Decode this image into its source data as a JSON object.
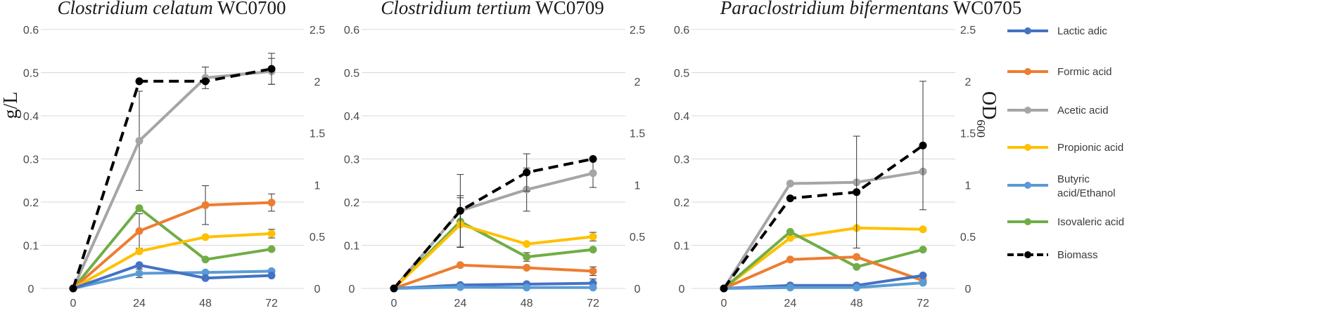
{
  "chart_data": {
    "type": "line",
    "left_axis": {
      "label": "g/L",
      "ylim": [
        0,
        0.6
      ],
      "ticks": [
        "0",
        "0.1",
        "0.2",
        "0.3",
        "0.4",
        "0.5",
        "0.6"
      ]
    },
    "right_axis": {
      "label_base": "OD",
      "label_sub": "600",
      "ylim": [
        0,
        2.5
      ],
      "ticks": [
        "0",
        "0.5",
        "1",
        "1.5",
        "2",
        "2.5"
      ]
    },
    "x": [
      0,
      24,
      48,
      72
    ],
    "x_tick_labels": [
      "0",
      "24",
      "48",
      "72"
    ],
    "legend": [
      {
        "key": "lactic",
        "label": "Lactic adic",
        "color": "#4472C4",
        "dashed": false
      },
      {
        "key": "formic",
        "label": "Formic acid",
        "color": "#ED7D31",
        "dashed": false
      },
      {
        "key": "acetic",
        "label": "Acetic acid",
        "color": "#A5A5A5",
        "dashed": false
      },
      {
        "key": "propionic",
        "label": "Propionic acid",
        "color": "#FFC000",
        "dashed": false
      },
      {
        "key": "butyric",
        "label": "Butyric acid/Ethanol",
        "label_lines": [
          "Butyric",
          "acid/Ethanol"
        ],
        "color": "#5B9BD5",
        "dashed": false
      },
      {
        "key": "isovaleric",
        "label": "Isovaleric acid",
        "color": "#70AD47",
        "dashed": false
      },
      {
        "key": "biomass",
        "label": "Biomass",
        "color": "#000000",
        "dashed": true
      }
    ],
    "panels": [
      {
        "title_italic": "Clostridium celatum",
        "title_plain": " WC0700",
        "series": [
          {
            "key": "acetic",
            "axis": "left",
            "values": [
              0,
              0.342,
              0.488,
              0.503
            ],
            "err": [
              0,
              0.115,
              0.025,
              0.03
            ]
          },
          {
            "key": "isovaleric",
            "axis": "left",
            "values": [
              0,
              0.186,
              0.067,
              0.091
            ],
            "err": [
              0,
              0.0,
              0.0,
              0.0
            ]
          },
          {
            "key": "formic",
            "axis": "left",
            "values": [
              0,
              0.133,
              0.193,
              0.199
            ],
            "err": [
              0,
              0.04,
              0.045,
              0.02
            ]
          },
          {
            "key": "propionic",
            "axis": "left",
            "values": [
              0,
              0.086,
              0.119,
              0.127
            ],
            "err": [
              0,
              0.0,
              0.0,
              0.01
            ]
          },
          {
            "key": "butyric",
            "axis": "left",
            "values": [
              0,
              0.035,
              0.037,
              0.04
            ],
            "err": [
              0,
              0.01,
              0.0,
              0.0
            ]
          },
          {
            "key": "lactic",
            "axis": "left",
            "values": [
              0,
              0.054,
              0.024,
              0.03
            ],
            "err": [
              0,
              0.0,
              0.0,
              0.0
            ]
          },
          {
            "key": "biomass",
            "axis": "right",
            "values": [
              0,
              2.0,
              2.0,
              2.12
            ],
            "err": [
              0,
              0.0,
              0.0,
              0.15
            ]
          }
        ]
      },
      {
        "title_italic": "Clostridium tertium",
        "title_plain": " WC0709",
        "series": [
          {
            "key": "acetic",
            "axis": "left",
            "values": [
              0,
              0.18,
              0.229,
              0.267
            ],
            "err": [
              0,
              0.03,
              0.05,
              0.033
            ]
          },
          {
            "key": "isovaleric",
            "axis": "left",
            "values": [
              0,
              0.155,
              0.073,
              0.09
            ],
            "err": [
              0,
              0.06,
              0.01,
              0.0
            ]
          },
          {
            "key": "propionic",
            "axis": "left",
            "values": [
              0,
              0.148,
              0.103,
              0.12
            ],
            "err": [
              0,
              0.0,
              0.0,
              0.01
            ]
          },
          {
            "key": "formic",
            "axis": "left",
            "values": [
              0,
              0.054,
              0.048,
              0.04
            ],
            "err": [
              0,
              0.0,
              0.0,
              0.01
            ]
          },
          {
            "key": "lactic",
            "axis": "left",
            "values": [
              0,
              0.008,
              0.01,
              0.012
            ],
            "err": [
              0,
              0.0,
              0.0,
              0.01
            ]
          },
          {
            "key": "butyric",
            "axis": "left",
            "values": [
              0,
              0.003,
              0.002,
              0.002
            ],
            "err": [
              0,
              0.0,
              0.0,
              0.0
            ]
          },
          {
            "key": "biomass",
            "axis": "right",
            "values": [
              0,
              0.75,
              1.12,
              1.25
            ],
            "err": [
              0,
              0.35,
              0.18,
              0.0
            ]
          }
        ]
      },
      {
        "title_italic": "Paraclostridium bifermentans",
        "title_plain": " WC0705",
        "series": [
          {
            "key": "acetic",
            "axis": "left",
            "values": [
              0,
              0.243,
              0.246,
              0.271
            ],
            "err": [
              0,
              0.0,
              0.0,
              0.0
            ]
          },
          {
            "key": "propionic",
            "axis": "left",
            "values": [
              0,
              0.117,
              0.14,
              0.137
            ],
            "err": [
              0,
              0.0,
              0.0,
              0.0
            ]
          },
          {
            "key": "isovaleric",
            "axis": "left",
            "values": [
              0,
              0.131,
              0.05,
              0.09
            ],
            "err": [
              0,
              0.0,
              0.0,
              0.0
            ]
          },
          {
            "key": "formic",
            "axis": "left",
            "values": [
              0,
              0.067,
              0.073,
              0.018
            ],
            "err": [
              0,
              0.0,
              0.0,
              0.0
            ]
          },
          {
            "key": "lactic",
            "axis": "left",
            "values": [
              0,
              0.007,
              0.007,
              0.03
            ],
            "err": [
              0,
              0.0,
              0.0,
              0.0
            ]
          },
          {
            "key": "butyric",
            "axis": "left",
            "values": [
              0,
              0.002,
              0.002,
              0.013
            ],
            "err": [
              0,
              0.0,
              0.0,
              0.0
            ]
          },
          {
            "key": "biomass",
            "axis": "right",
            "values": [
              0,
              0.87,
              0.93,
              1.38
            ],
            "err": [
              0,
              0.0,
              0.54,
              0.62
            ]
          }
        ]
      }
    ]
  }
}
